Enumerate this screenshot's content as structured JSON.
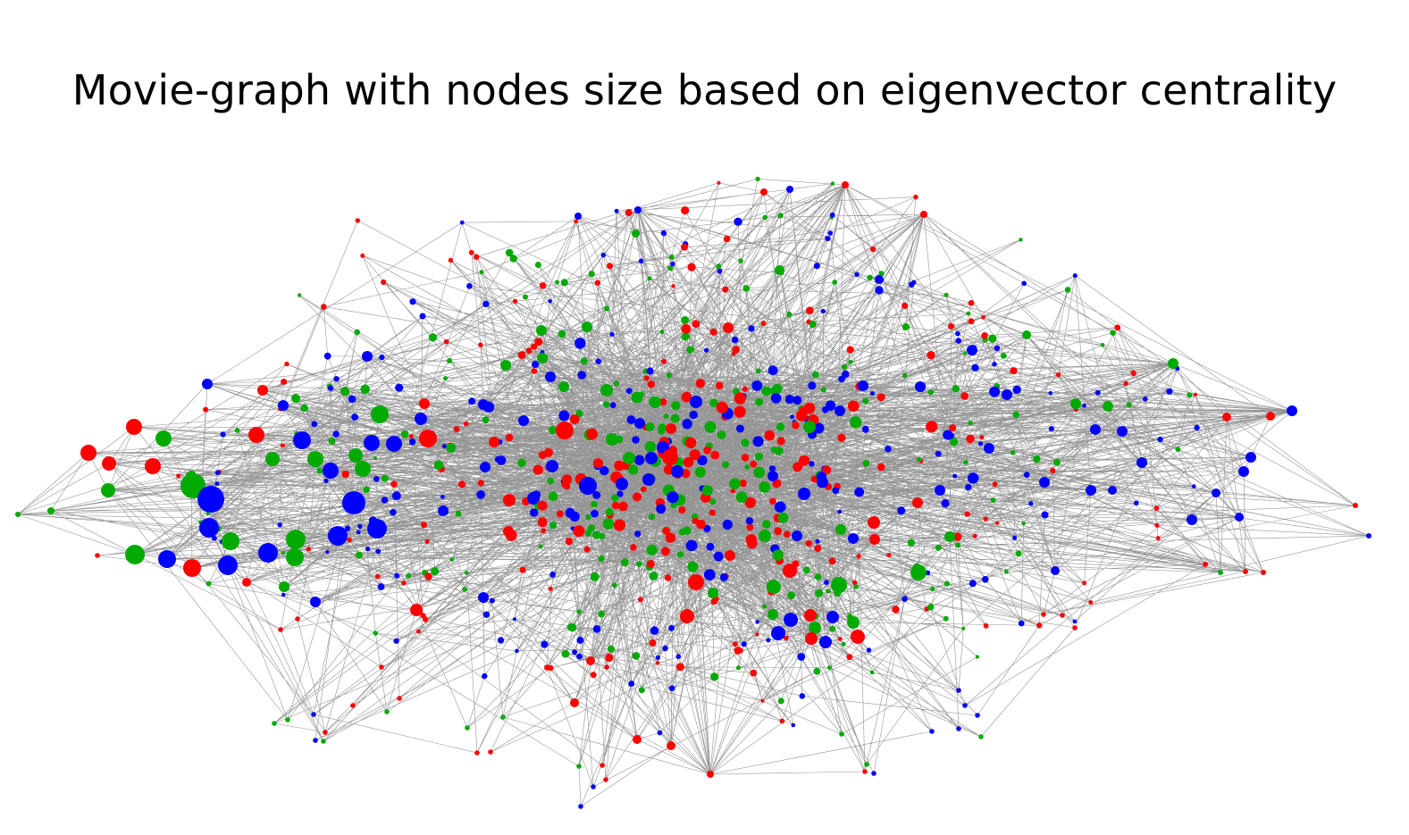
{
  "figure": {
    "title": "Movie-graph with nodes size based on eigenvector centrality"
  },
  "colors": {
    "background": "#ffffff",
    "edge": "#000000",
    "groups": [
      "#ff0000",
      "#00aa00",
      "#0000ff"
    ],
    "group_color_names": [
      "red",
      "green",
      "blue"
    ]
  },
  "graph": {
    "type": "network",
    "node_size_encodes": "eigenvector centrality",
    "node_color_groups": 3,
    "approx_node_count": 700,
    "layout": "force-directed, dense core with periphery"
  }
}
